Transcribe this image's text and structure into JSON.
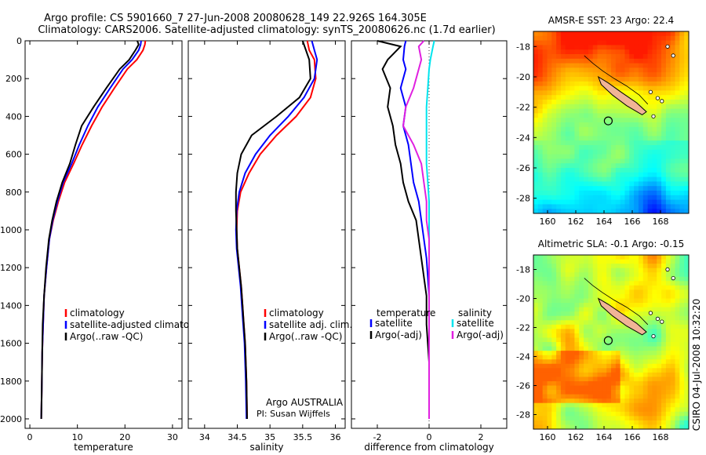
{
  "header": {
    "line1": "Argo profile: CS 5901660_7 27-Jun-2008 20080628_149 22.926S 164.305E",
    "line2": "Climatology: CARS2006. Satellite-adjusted climatology: synTS_20080626.nc (1.7d earlier)"
  },
  "side_label": "CSIRO 04-Jul-2008 10:32:20",
  "colors": {
    "climatology": "#ff0000",
    "satellite": "#0000ff",
    "argo": "#000000",
    "satellite_salinity": "#00e5ee",
    "argo_salinity": "#e020e0",
    "island": "#f0b496"
  },
  "chart_data": [
    {
      "id": "temperature",
      "type": "line",
      "xlabel": "temperature",
      "ylabel": "",
      "xlim": [
        -1,
        32
      ],
      "ylim": [
        2050,
        0
      ],
      "xticks": [
        0,
        10,
        20,
        30
      ],
      "yticks": [
        0,
        200,
        400,
        600,
        800,
        1000,
        1200,
        1400,
        1600,
        1800,
        2000
      ],
      "legend": [
        "climatology",
        "satellite-adjusted climatology",
        "Argo(..raw -QC)"
      ],
      "series": [
        {
          "name": "climatology",
          "color": "#ff0000",
          "x": [
            24.3,
            24.2,
            23.8,
            22.5,
            20.5,
            17.8,
            15.2,
            13.0,
            11.0,
            9.2,
            7.3,
            6.0,
            4.9,
            4.1,
            3.5,
            3.0,
            2.8,
            2.6,
            2.5,
            2.4
          ],
          "y": [
            0,
            20,
            50,
            100,
            150,
            250,
            350,
            450,
            550,
            650,
            750,
            850,
            950,
            1050,
            1200,
            1350,
            1500,
            1650,
            1850,
            2000
          ]
        },
        {
          "name": "satellite-adjusted climatology",
          "color": "#0000ff",
          "x": [
            23.4,
            23.3,
            22.9,
            21.5,
            19.6,
            16.9,
            14.3,
            12.2,
            10.4,
            8.8,
            7.0,
            5.8,
            4.8,
            4.1,
            3.5,
            3.0,
            2.8,
            2.6,
            2.5,
            2.4
          ],
          "y": [
            0,
            20,
            50,
            100,
            150,
            250,
            350,
            450,
            550,
            650,
            750,
            850,
            950,
            1050,
            1200,
            1350,
            1500,
            1650,
            1850,
            2000
          ]
        },
        {
          "name": "Argo(..raw -QC)",
          "color": "#000000",
          "x": [
            22.6,
            22.9,
            22.2,
            20.9,
            18.9,
            16.1,
            13.4,
            10.9,
            9.6,
            8.4,
            6.8,
            5.6,
            4.7,
            4.0,
            3.4,
            3.0,
            2.7,
            2.6,
            2.5,
            2.4
          ],
          "y": [
            0,
            20,
            50,
            100,
            150,
            250,
            350,
            450,
            550,
            650,
            750,
            850,
            950,
            1050,
            1200,
            1350,
            1500,
            1650,
            1850,
            2000
          ]
        }
      ]
    },
    {
      "id": "salinity",
      "type": "line",
      "xlabel": "salinity",
      "ylabel": "",
      "xlim": [
        33.75,
        36.15
      ],
      "ylim": [
        2050,
        0
      ],
      "xticks": [
        34,
        34.5,
        35,
        35.5,
        36
      ],
      "xticklabels": [
        "34",
        "34.5",
        "35",
        "35.5",
        "36"
      ],
      "yticks": [
        0,
        200,
        400,
        600,
        800,
        1000,
        1200,
        1400,
        1600,
        1800,
        2000
      ],
      "legend": [
        "climatology",
        "satellite adj. clim.",
        "Argo(..raw -QC)"
      ],
      "annotation": [
        "Argo AUSTRALIA",
        "PI: Susan Wijffels"
      ],
      "series": [
        {
          "name": "climatology",
          "color": "#ff0000",
          "x": [
            35.57,
            35.6,
            35.68,
            35.7,
            35.62,
            35.4,
            35.1,
            34.85,
            34.68,
            34.55,
            34.5,
            34.49,
            34.5,
            34.53,
            34.56,
            34.58,
            34.6,
            34.62,
            34.64,
            34.65
          ],
          "y": [
            0,
            50,
            100,
            200,
            300,
            400,
            500,
            600,
            700,
            800,
            900,
            1000,
            1100,
            1200,
            1300,
            1400,
            1500,
            1600,
            1800,
            2000
          ]
        },
        {
          "name": "satellite adj. clim.",
          "color": "#0000ff",
          "x": [
            35.64,
            35.68,
            35.72,
            35.68,
            35.52,
            35.28,
            35.0,
            34.78,
            34.62,
            34.53,
            34.49,
            34.48,
            34.49,
            34.52,
            34.55,
            34.57,
            34.59,
            34.61,
            34.63,
            34.64
          ],
          "y": [
            0,
            50,
            100,
            200,
            300,
            400,
            500,
            600,
            700,
            800,
            900,
            1000,
            1100,
            1200,
            1300,
            1400,
            1500,
            1600,
            1800,
            2000
          ]
        },
        {
          "name": "Argo(..raw -QC)",
          "color": "#000000",
          "x": [
            35.5,
            35.55,
            35.6,
            35.62,
            35.45,
            35.1,
            34.72,
            34.56,
            34.5,
            34.48,
            34.48,
            34.49,
            34.5,
            34.53,
            34.56,
            34.58,
            34.6,
            34.62,
            34.64,
            34.65
          ],
          "y": [
            0,
            50,
            100,
            200,
            300,
            400,
            500,
            600,
            700,
            800,
            900,
            1000,
            1100,
            1200,
            1300,
            1400,
            1500,
            1600,
            1800,
            2000
          ]
        }
      ]
    },
    {
      "id": "difference",
      "type": "line",
      "xlabel": "difference from climatology",
      "ylabel": "",
      "xlim": [
        -3,
        3
      ],
      "ylim": [
        2050,
        0
      ],
      "xticks": [
        -2,
        0,
        2
      ],
      "yticks": [
        0,
        200,
        400,
        600,
        800,
        1000,
        1200,
        1400,
        1600,
        1800,
        2000
      ],
      "legend_left": [
        "temperature",
        "satellite",
        "Argo(-adj)"
      ],
      "legend_right": [
        "salinity",
        "satellite",
        "Argo(-adj)"
      ],
      "series": [
        {
          "name": "temperature satellite",
          "color": "#0000ff",
          "x": [
            -0.9,
            -0.95,
            -1.0,
            -0.9,
            -1.1,
            -0.9,
            -1.0,
            -0.8,
            -0.7,
            -0.6,
            -0.4,
            -0.3,
            -0.2,
            -0.1,
            -0.05,
            0,
            0,
            0,
            0
          ],
          "y": [
            0,
            30,
            100,
            150,
            250,
            350,
            450,
            550,
            650,
            750,
            850,
            950,
            1050,
            1150,
            1250,
            1350,
            1500,
            1700,
            2000
          ]
        },
        {
          "name": "temperature Argo(-adj)",
          "color": "#000000",
          "x": [
            -2.0,
            -1.1,
            -1.6,
            -1.8,
            -1.5,
            -1.6,
            -1.4,
            -1.3,
            -1.1,
            -1.0,
            -0.8,
            -0.5,
            -0.4,
            -0.3,
            -0.2,
            -0.1,
            -0.1,
            0,
            0
          ],
          "y": [
            0,
            30,
            100,
            150,
            250,
            350,
            450,
            550,
            650,
            750,
            850,
            950,
            1050,
            1150,
            1250,
            1350,
            1500,
            1700,
            2000
          ]
        },
        {
          "name": "salinity satellite",
          "color": "#00e5ee",
          "x": [
            0.2,
            0.15,
            0.05,
            0.0,
            -0.05,
            -0.1,
            -0.1,
            -0.1,
            -0.1,
            -0.05,
            0,
            0,
            0,
            0,
            0,
            0,
            0,
            0,
            0
          ],
          "y": [
            0,
            30,
            100,
            150,
            250,
            350,
            450,
            550,
            650,
            750,
            850,
            950,
            1050,
            1150,
            1250,
            1350,
            1500,
            1700,
            2000
          ]
        },
        {
          "name": "salinity Argo(-adj)",
          "color": "#e020e0",
          "x": [
            -0.2,
            -0.4,
            -0.3,
            -0.4,
            -0.6,
            -0.9,
            -1.0,
            -0.6,
            -0.3,
            -0.2,
            -0.1,
            -0.1,
            0,
            0,
            0,
            0,
            0,
            0,
            0
          ],
          "y": [
            0,
            30,
            100,
            150,
            250,
            350,
            450,
            550,
            650,
            750,
            850,
            950,
            1050,
            1150,
            1250,
            1350,
            1500,
            1700,
            2000
          ]
        }
      ]
    },
    {
      "id": "sst_map",
      "type": "heatmap",
      "title": "AMSR-E SST: 23 Argo: 22.4",
      "xlim": [
        159,
        170
      ],
      "ylim": [
        -29,
        -17
      ],
      "xticks": [
        160,
        162,
        164,
        166,
        168
      ],
      "yticks": [
        -18,
        -20,
        -22,
        -24,
        -26,
        -28
      ],
      "argo_position": {
        "lon": 164.3,
        "lat": -22.9
      }
    },
    {
      "id": "sla_map",
      "type": "heatmap",
      "title": "Altimetric SLA: -0.1 Argo: -0.15",
      "xlim": [
        159,
        170
      ],
      "ylim": [
        -29,
        -17
      ],
      "xticks": [
        160,
        162,
        164,
        166,
        168
      ],
      "yticks": [
        -18,
        -20,
        -22,
        -24,
        -26,
        -28
      ],
      "argo_position": {
        "lon": 164.3,
        "lat": -22.9
      }
    }
  ]
}
